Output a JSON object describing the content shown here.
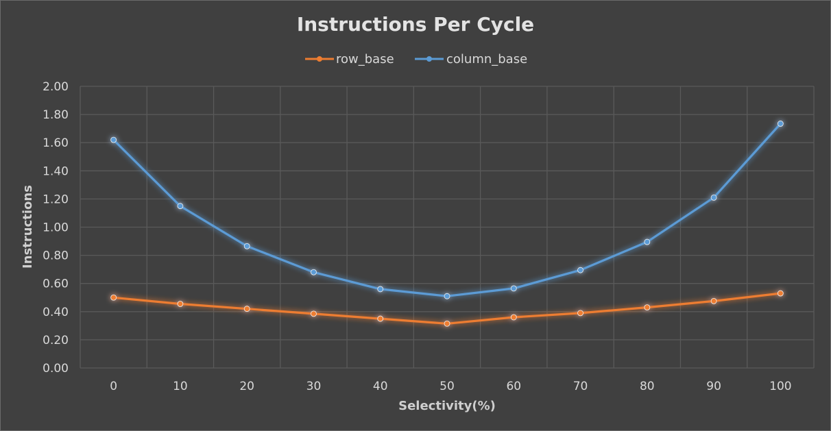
{
  "chart_data": {
    "type": "line",
    "title": "Instructions Per Cycle",
    "xlabel": "Selectivity(%)",
    "ylabel": "Instructions",
    "x": [
      0,
      10,
      20,
      30,
      40,
      50,
      60,
      70,
      80,
      90,
      100
    ],
    "ylim": [
      0,
      2
    ],
    "yticks": [
      "0.00",
      "0.20",
      "0.40",
      "0.60",
      "0.80",
      "1.00",
      "1.20",
      "1.40",
      "1.60",
      "1.80",
      "2.00"
    ],
    "grid": true,
    "legend_position": "top-center",
    "series": [
      {
        "name": "row_base",
        "color": "#ed7d31",
        "values": [
          0.5,
          0.455,
          0.42,
          0.385,
          0.35,
          0.315,
          0.36,
          0.39,
          0.43,
          0.475,
          0.53
        ]
      },
      {
        "name": "column_base",
        "color": "#5b9bd5",
        "values": [
          1.62,
          1.15,
          0.865,
          0.68,
          0.56,
          0.51,
          0.565,
          0.695,
          0.895,
          1.21,
          1.735
        ]
      }
    ],
    "colors": {
      "background": "#404040",
      "grid": "#5a5a5a",
      "text": "#d9d9d9"
    }
  }
}
